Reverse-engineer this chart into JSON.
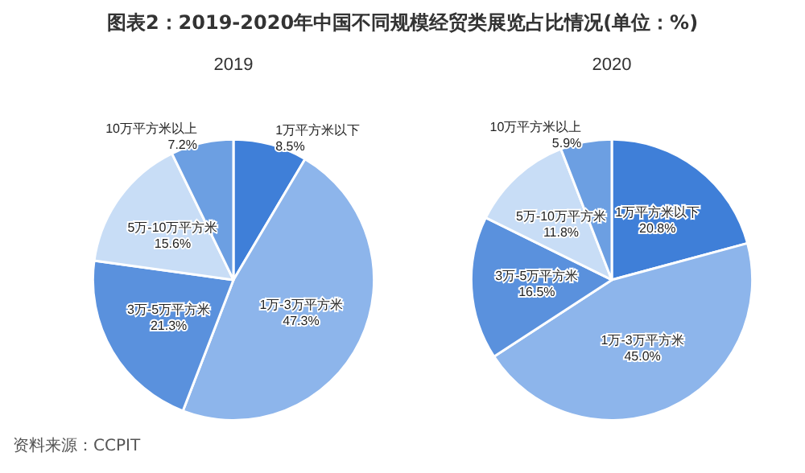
{
  "chart_data": [
    {
      "type": "pie",
      "title": "图表2：2019-2020年中国不同规模经贸类展览占比情况(单位：%)",
      "subtitle": "2019",
      "categories": [
        "1万平方米以下",
        "1万-3万平方米",
        "3万-5万平方米",
        "5万-10万平方米",
        "10万平方米以上"
      ],
      "values": [
        8.5,
        47.3,
        21.3,
        15.6,
        7.2
      ],
      "value_labels": [
        "8.5%",
        "47.3%",
        "21.3%",
        "15.6%",
        "7.2%"
      ],
      "colors": [
        "#3f7fd8",
        "#8db5eb",
        "#5a91dd",
        "#c8ddf6",
        "#6c9fe2"
      ],
      "annotations": [
        "资料来源：CCPIT"
      ]
    },
    {
      "type": "pie",
      "subtitle": "2020",
      "categories": [
        "1万平方米以下",
        "1万-3万平方米",
        "3万-5万平方米",
        "5万-10万平方米",
        "10万平方米以上"
      ],
      "values": [
        20.8,
        45.0,
        16.5,
        11.8,
        5.9
      ],
      "value_labels": [
        "20.8%",
        "45.0%",
        "16.5%",
        "11.8%",
        "5.9%"
      ],
      "colors": [
        "#3f7fd8",
        "#8db5eb",
        "#5a91dd",
        "#c8ddf6",
        "#6c9fe2"
      ]
    }
  ]
}
